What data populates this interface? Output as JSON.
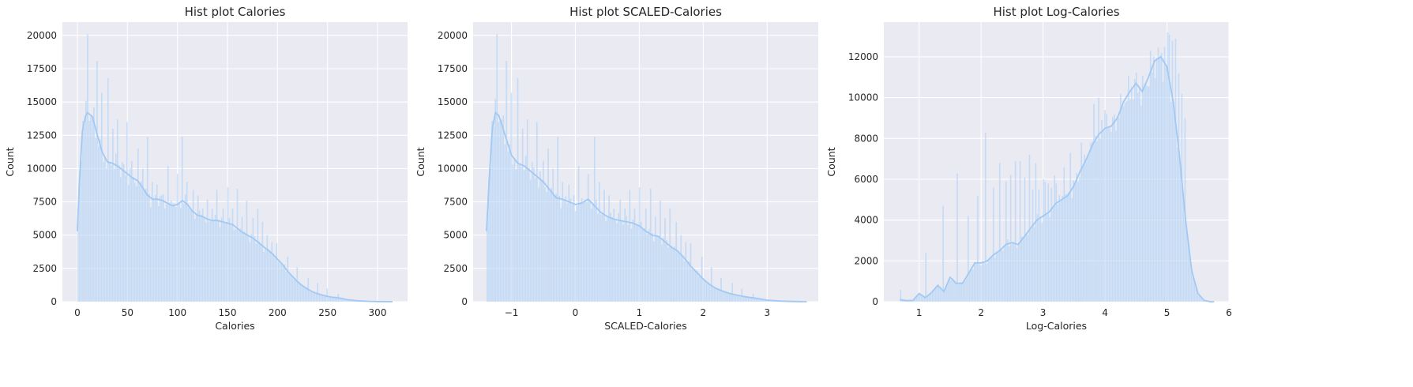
{
  "colors": {
    "bar": "#a1c9f4",
    "kde": "#a1c9f4",
    "axes_bg": "#eaeaf2",
    "grid": "#ffffff"
  },
  "chart_data": [
    {
      "type": "histogram",
      "title": "Hist plot Calories",
      "xlabel": "Calories",
      "ylabel": "Count",
      "xlim": [
        -15,
        330
      ],
      "ylim": [
        0,
        21000
      ],
      "xticks": [
        0,
        50,
        100,
        150,
        200,
        250,
        300
      ],
      "xtick_labels": [
        "0",
        "50",
        "100",
        "150",
        "200",
        "250",
        "300"
      ],
      "yticks": [
        0,
        2500,
        5000,
        7500,
        10000,
        12500,
        15000,
        17500,
        20000
      ],
      "ytick_labels": [
        "0",
        "2500",
        "5000",
        "7500",
        "10000",
        "12500",
        "15000",
        "17500",
        "20000"
      ],
      "bin_range": [
        0,
        315
      ],
      "bins": 200,
      "kde_x": [
        0,
        2,
        5,
        8,
        10,
        15,
        20,
        25,
        30,
        35,
        40,
        45,
        50,
        55,
        60,
        65,
        70,
        75,
        80,
        85,
        90,
        95,
        100,
        105,
        110,
        115,
        120,
        125,
        130,
        135,
        140,
        145,
        150,
        155,
        160,
        165,
        170,
        175,
        180,
        185,
        190,
        195,
        200,
        205,
        210,
        215,
        220,
        225,
        230,
        235,
        240,
        245,
        250,
        255,
        260,
        265,
        270,
        280,
        290,
        300,
        315
      ],
      "kde_y": [
        5300,
        9000,
        12800,
        13900,
        14200,
        13900,
        12500,
        11200,
        10500,
        10400,
        10200,
        9900,
        9600,
        9300,
        9100,
        8600,
        8000,
        7700,
        7700,
        7600,
        7400,
        7200,
        7300,
        7600,
        7300,
        6800,
        6500,
        6400,
        6200,
        6100,
        6100,
        6000,
        5900,
        5800,
        5500,
        5200,
        5000,
        4800,
        4500,
        4200,
        3900,
        3600,
        3200,
        2800,
        2300,
        1900,
        1500,
        1200,
        950,
        750,
        600,
        500,
        400,
        330,
        300,
        230,
        150,
        70,
        30,
        12,
        0
      ],
      "spikes": [
        [
          5,
          13600
        ],
        [
          10,
          20100
        ],
        [
          15,
          13700
        ],
        [
          20,
          18100
        ],
        [
          25,
          15700
        ],
        [
          30,
          16800
        ],
        [
          35,
          13000
        ],
        [
          40,
          13700
        ],
        [
          45,
          10500
        ],
        [
          50,
          13500
        ],
        [
          55,
          10600
        ],
        [
          60,
          11500
        ],
        [
          65,
          10000
        ],
        [
          70,
          12400
        ],
        [
          75,
          9000
        ],
        [
          80,
          8800
        ],
        [
          85,
          8000
        ],
        [
          90,
          10200
        ],
        [
          95,
          7400
        ],
        [
          100,
          9600
        ],
        [
          105,
          12400
        ],
        [
          110,
          9000
        ],
        [
          115,
          8400
        ],
        [
          120,
          8000
        ],
        [
          125,
          7000
        ],
        [
          130,
          7700
        ],
        [
          135,
          7000
        ],
        [
          140,
          8400
        ],
        [
          145,
          7000
        ],
        [
          150,
          8600
        ],
        [
          155,
          7000
        ],
        [
          160,
          8500
        ],
        [
          165,
          6400
        ],
        [
          170,
          7600
        ],
        [
          175,
          6300
        ],
        [
          180,
          7000
        ],
        [
          185,
          6000
        ],
        [
          190,
          5000
        ],
        [
          195,
          4500
        ],
        [
          200,
          4400
        ],
        [
          210,
          3400
        ],
        [
          220,
          2600
        ],
        [
          230,
          1800
        ],
        [
          240,
          1400
        ],
        [
          250,
          1000
        ],
        [
          260,
          600
        ]
      ]
    },
    {
      "type": "histogram",
      "title": "Hist plot SCALED-Calories",
      "xlabel": "SCALED-Calories",
      "ylabel": "Count",
      "xlim": [
        -1.6,
        3.8
      ],
      "ylim": [
        0,
        21000
      ],
      "xticks": [
        -1,
        0,
        1,
        2,
        3
      ],
      "xtick_labels": [
        "−1",
        "0",
        "1",
        "2",
        "3"
      ],
      "yticks": [
        0,
        2500,
        5000,
        7500,
        10000,
        12500,
        15000,
        17500,
        20000
      ],
      "ytick_labels": [
        "0",
        "2500",
        "5000",
        "7500",
        "10000",
        "12500",
        "15000",
        "17500",
        "20000"
      ],
      "bin_range": [
        -1.39,
        3.62
      ],
      "bins": 200,
      "kde_x": [
        -1.39,
        -1.35,
        -1.3,
        -1.25,
        -1.2,
        -1.15,
        -1.1,
        -1.0,
        -0.9,
        -0.8,
        -0.7,
        -0.6,
        -0.5,
        -0.4,
        -0.3,
        -0.2,
        -0.1,
        0.0,
        0.1,
        0.2,
        0.3,
        0.4,
        0.5,
        0.6,
        0.7,
        0.8,
        0.9,
        1.0,
        1.1,
        1.2,
        1.3,
        1.4,
        1.5,
        1.6,
        1.7,
        1.8,
        1.9,
        2.0,
        2.1,
        2.2,
        2.3,
        2.4,
        2.5,
        2.6,
        2.7,
        2.8,
        2.9,
        3.0,
        3.2,
        3.4,
        3.62
      ],
      "kde_y": [
        5300,
        9000,
        13000,
        14200,
        14000,
        13300,
        12500,
        11000,
        10400,
        10200,
        9800,
        9400,
        9000,
        8400,
        7800,
        7700,
        7500,
        7300,
        7400,
        7700,
        7200,
        6700,
        6400,
        6200,
        6100,
        6000,
        5900,
        5700,
        5300,
        5000,
        4900,
        4500,
        4100,
        3800,
        3300,
        2700,
        2200,
        1700,
        1300,
        1000,
        800,
        640,
        520,
        420,
        340,
        280,
        200,
        120,
        50,
        15,
        0
      ],
      "spikes": [
        [
          -1.31,
          13600
        ],
        [
          -1.23,
          20100
        ],
        [
          -1.15,
          13700
        ],
        [
          -1.07,
          18100
        ],
        [
          -0.99,
          15700
        ],
        [
          -0.91,
          16800
        ],
        [
          -0.83,
          13000
        ],
        [
          -0.75,
          13700
        ],
        [
          -0.67,
          10500
        ],
        [
          -0.59,
          13500
        ],
        [
          -0.51,
          10600
        ],
        [
          -0.43,
          11500
        ],
        [
          -0.35,
          10000
        ],
        [
          -0.27,
          12400
        ],
        [
          -0.19,
          9000
        ],
        [
          -0.11,
          8800
        ],
        [
          -0.03,
          8000
        ],
        [
          0.05,
          10200
        ],
        [
          0.13,
          7400
        ],
        [
          0.21,
          9600
        ],
        [
          0.29,
          12400
        ],
        [
          0.37,
          9000
        ],
        [
          0.45,
          8400
        ],
        [
          0.53,
          8000
        ],
        [
          0.61,
          7000
        ],
        [
          0.69,
          7700
        ],
        [
          0.77,
          7000
        ],
        [
          0.85,
          8400
        ],
        [
          0.93,
          7000
        ],
        [
          1.01,
          8600
        ],
        [
          1.09,
          7000
        ],
        [
          1.17,
          8500
        ],
        [
          1.25,
          6400
        ],
        [
          1.33,
          7600
        ],
        [
          1.41,
          6300
        ],
        [
          1.49,
          7000
        ],
        [
          1.57,
          6000
        ],
        [
          1.65,
          5000
        ],
        [
          1.73,
          4500
        ],
        [
          1.81,
          4400
        ],
        [
          1.97,
          3400
        ],
        [
          2.13,
          2600
        ],
        [
          2.29,
          1800
        ],
        [
          2.45,
          1400
        ],
        [
          2.61,
          1000
        ],
        [
          2.77,
          600
        ]
      ]
    },
    {
      "type": "histogram",
      "title": "Hist plot Log-Calories",
      "xlabel": "Log-Calories",
      "ylabel": "Count",
      "xlim": [
        0.43,
        6.0
      ],
      "ylim": [
        0,
        13700
      ],
      "xticks": [
        1,
        2,
        3,
        4,
        5,
        6
      ],
      "xtick_labels": [
        "1",
        "2",
        "3",
        "4",
        "5",
        "6"
      ],
      "yticks": [
        0,
        2000,
        4000,
        6000,
        8000,
        10000,
        12000
      ],
      "ytick_labels": [
        "0",
        "2000",
        "4000",
        "6000",
        "8000",
        "10000",
        "12000"
      ],
      "bin_range": [
        0.69,
        5.76
      ],
      "bins": 200,
      "kde_x": [
        0.69,
        0.8,
        0.9,
        1.0,
        1.1,
        1.2,
        1.3,
        1.4,
        1.5,
        1.6,
        1.7,
        1.8,
        1.9,
        2.0,
        2.1,
        2.2,
        2.3,
        2.4,
        2.5,
        2.6,
        2.7,
        2.8,
        2.9,
        3.0,
        3.1,
        3.2,
        3.3,
        3.4,
        3.5,
        3.6,
        3.7,
        3.8,
        3.9,
        4.0,
        4.1,
        4.2,
        4.3,
        4.4,
        4.5,
        4.6,
        4.7,
        4.8,
        4.9,
        5.0,
        5.1,
        5.2,
        5.3,
        5.4,
        5.5,
        5.6,
        5.7,
        5.76
      ],
      "kde_y": [
        100,
        50,
        60,
        400,
        200,
        450,
        800,
        500,
        1200,
        900,
        900,
        1400,
        1900,
        1900,
        2000,
        2300,
        2500,
        2800,
        2900,
        2800,
        3200,
        3600,
        4000,
        4200,
        4400,
        4800,
        5000,
        5200,
        5700,
        6400,
        7000,
        7700,
        8200,
        8500,
        8600,
        9000,
        9800,
        10300,
        10700,
        10300,
        11000,
        11800,
        12000,
        11500,
        9800,
        7200,
        4000,
        1500,
        400,
        60,
        0,
        0
      ],
      "spikes": [
        [
          0.69,
          600
        ],
        [
          1.1,
          2400
        ],
        [
          1.39,
          4700
        ],
        [
          1.61,
          6300
        ],
        [
          1.79,
          4200
        ],
        [
          1.95,
          5200
        ],
        [
          2.08,
          8300
        ],
        [
          2.2,
          5600
        ],
        [
          2.3,
          6800
        ],
        [
          2.4,
          5900
        ],
        [
          2.48,
          6200
        ],
        [
          2.56,
          6900
        ],
        [
          2.64,
          6900
        ],
        [
          2.71,
          6100
        ],
        [
          2.77,
          7200
        ],
        [
          2.83,
          5500
        ],
        [
          2.89,
          6800
        ],
        [
          2.94,
          5500
        ],
        [
          3.0,
          6000
        ],
        [
          3.04,
          5900
        ],
        [
          3.09,
          5800
        ],
        [
          3.14,
          5600
        ],
        [
          3.18,
          6200
        ],
        [
          3.22,
          5800
        ],
        [
          3.26,
          5000
        ],
        [
          3.33,
          6600
        ],
        [
          3.43,
          7300
        ],
        [
          3.53,
          5600
        ],
        [
          3.61,
          7800
        ],
        [
          3.69,
          6900
        ],
        [
          3.76,
          6800
        ],
        [
          3.83,
          9700
        ],
        [
          3.89,
          10000
        ],
        [
          3.95,
          8900
        ],
        [
          4.01,
          9400
        ],
        [
          4.06,
          8500
        ],
        [
          4.11,
          7800
        ],
        [
          4.17,
          8400
        ],
        [
          4.23,
          9000
        ],
        [
          4.3,
          9300
        ],
        [
          4.38,
          9800
        ],
        [
          4.44,
          10300
        ],
        [
          4.5,
          11000
        ],
        [
          4.55,
          9900
        ],
        [
          4.6,
          10600
        ],
        [
          4.65,
          10400
        ],
        [
          4.7,
          9800
        ],
        [
          4.74,
          12300
        ],
        [
          4.8,
          10500
        ],
        [
          4.86,
          11200
        ],
        [
          4.92,
          11700
        ],
        [
          4.97,
          12500
        ],
        [
          5.01,
          13200
        ],
        [
          5.05,
          13100
        ],
        [
          5.09,
          12800
        ],
        [
          5.14,
          12900
        ],
        [
          5.2,
          11200
        ],
        [
          5.25,
          10200
        ],
        [
          5.3,
          9000
        ]
      ]
    }
  ]
}
